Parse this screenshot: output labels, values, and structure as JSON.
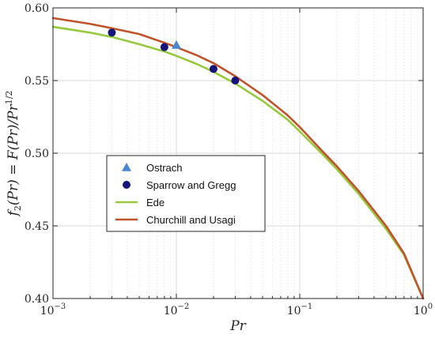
{
  "chart_data": {
    "type": "line",
    "xscale": "log",
    "xlim": [
      0.001,
      1
    ],
    "ylim": [
      0.4,
      0.6
    ],
    "grid": true,
    "legend_position": "middle-left",
    "xlabel": "Pr",
    "ylabel": "f_2(Pr) = F(Pr)/Pr^{1/2}",
    "ylabel_parts": {
      "f": "f",
      "sub": "2",
      "arg": "(Pr) = F(Pr)/Pr",
      "sup": "1/2"
    },
    "x_ticks": [
      {
        "value": 0.001,
        "base": "10",
        "exp": "−3"
      },
      {
        "value": 0.01,
        "base": "10",
        "exp": "−2"
      },
      {
        "value": 0.1,
        "base": "10",
        "exp": "−1"
      },
      {
        "value": 1,
        "base": "10",
        "exp": "0"
      }
    ],
    "y_ticks": [
      {
        "value": 0.4,
        "label": "0.40"
      },
      {
        "value": 0.45,
        "label": "0.45"
      },
      {
        "value": 0.5,
        "label": "0.50"
      },
      {
        "value": 0.55,
        "label": "0.55"
      },
      {
        "value": 0.6,
        "label": "0.60"
      }
    ],
    "series": [
      {
        "name": "Ostrach",
        "kind": "scatter",
        "marker": "triangle",
        "color": "#4a86d4",
        "x": [
          0.01
        ],
        "y": [
          0.5745
        ]
      },
      {
        "name": "Sparrow and Gregg",
        "kind": "scatter",
        "marker": "circle",
        "color": "#14147a",
        "x": [
          0.003,
          0.008,
          0.02,
          0.03
        ],
        "y": [
          0.583,
          0.573,
          0.558,
          0.55
        ]
      },
      {
        "name": "Ede",
        "kind": "line",
        "color": "#96c93d",
        "x": [
          0.001,
          0.002,
          0.003,
          0.005,
          0.008,
          0.01,
          0.015,
          0.02,
          0.03,
          0.05,
          0.08,
          0.1,
          0.15,
          0.2,
          0.3,
          0.5,
          0.7,
          1.0
        ],
        "y": [
          0.587,
          0.583,
          0.58,
          0.575,
          0.57,
          0.567,
          0.561,
          0.556,
          0.548,
          0.536,
          0.523,
          0.515,
          0.5,
          0.489,
          0.472,
          0.448,
          0.43,
          0.4
        ]
      },
      {
        "name": "Churchill and Usagi",
        "kind": "line",
        "color": "#c0532a",
        "x": [
          0.001,
          0.002,
          0.003,
          0.005,
          0.008,
          0.01,
          0.015,
          0.02,
          0.03,
          0.05,
          0.08,
          0.1,
          0.15,
          0.2,
          0.3,
          0.5,
          0.7,
          1.0
        ],
        "y": [
          0.593,
          0.589,
          0.586,
          0.582,
          0.576,
          0.573,
          0.567,
          0.562,
          0.553,
          0.54,
          0.526,
          0.518,
          0.502,
          0.491,
          0.474,
          0.45,
          0.431,
          0.4
        ]
      }
    ]
  }
}
